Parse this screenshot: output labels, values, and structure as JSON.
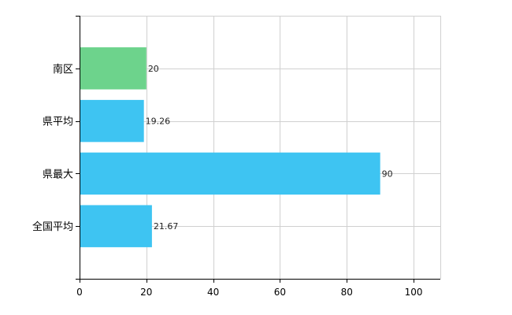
{
  "chart_data": {
    "type": "bar",
    "orientation": "horizontal",
    "categories": [
      "南区",
      "県平均",
      "県最大",
      "全国平均"
    ],
    "values": [
      20,
      19.26,
      90,
      21.67
    ],
    "data_labels": [
      "20",
      "19.26",
      "90",
      "21.67"
    ],
    "bar_colors": [
      "#6dd38c",
      "#3ec4f2",
      "#3ec4f2",
      "#3ec4f2"
    ],
    "xlim": [
      0,
      108
    ],
    "x_ticks": [
      0,
      20,
      40,
      60,
      80,
      100
    ],
    "x_tick_labels": [
      "0",
      "20",
      "40",
      "60",
      "80",
      "100"
    ],
    "grid": true,
    "legend": "none",
    "title": "",
    "xlabel": "",
    "ylabel": ""
  }
}
